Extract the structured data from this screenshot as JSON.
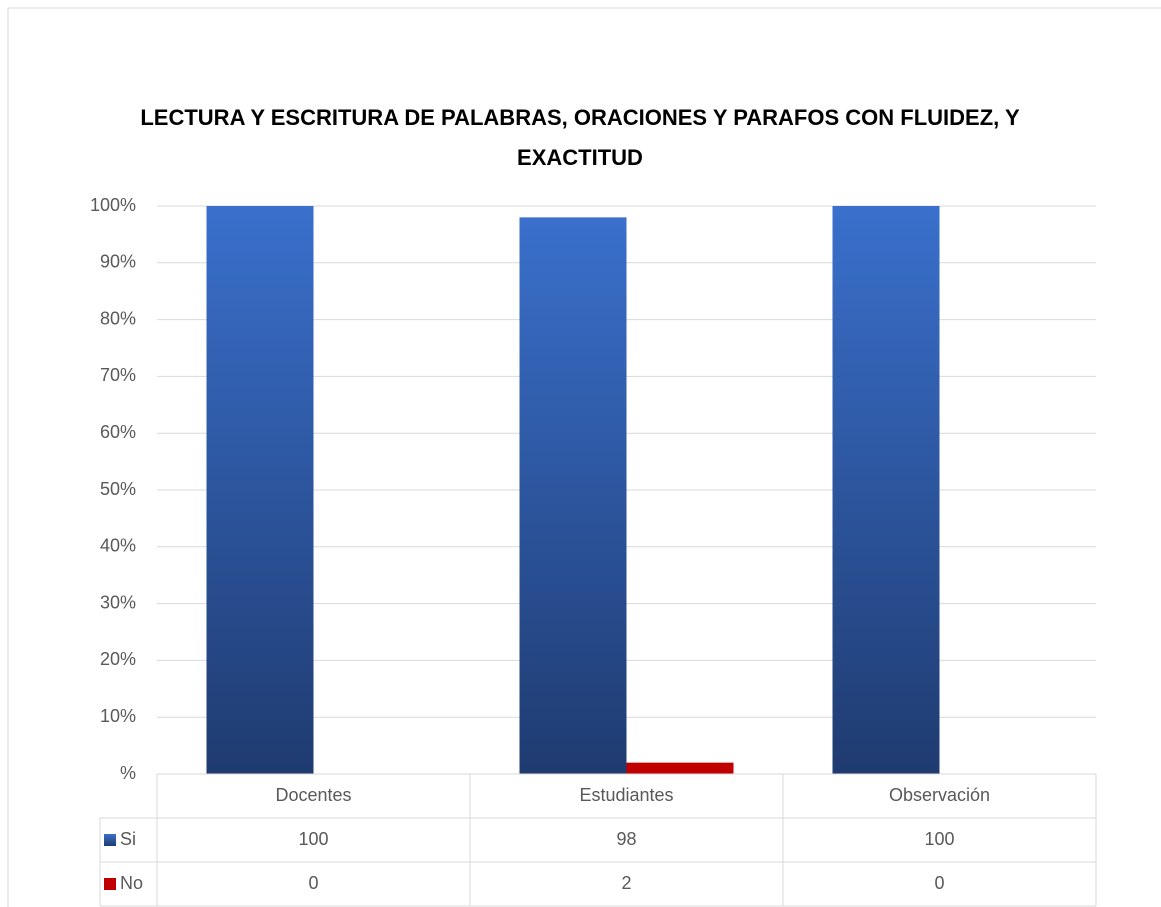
{
  "chart_data": {
    "type": "bar",
    "title": "LECTURA Y ESCRITURA DE PALABRAS, ORACIONES Y PARAFOS CON FLUIDEZ, Y EXACTITUD",
    "categories": [
      "Docentes",
      "Estudiantes",
      "Observación"
    ],
    "series": [
      {
        "name": "Si",
        "color": "#3a70cc",
        "values": [
          100,
          98,
          100
        ]
      },
      {
        "name": "No",
        "color": "#c00000",
        "values": [
          0,
          2,
          0
        ]
      }
    ],
    "ylim": [
      0,
      100
    ],
    "yticks": [
      {
        "value": 0,
        "label": "%"
      },
      {
        "value": 10,
        "label": "10%"
      },
      {
        "value": 20,
        "label": "20%"
      },
      {
        "value": 30,
        "label": "30%"
      },
      {
        "value": 40,
        "label": "40%"
      },
      {
        "value": 50,
        "label": "50%"
      },
      {
        "value": 60,
        "label": "60%"
      },
      {
        "value": 70,
        "label": "70%"
      },
      {
        "value": 80,
        "label": "80%"
      },
      {
        "value": 90,
        "label": "90%"
      },
      {
        "value": 100,
        "label": "100%"
      }
    ],
    "grid": true,
    "data_table": true
  }
}
